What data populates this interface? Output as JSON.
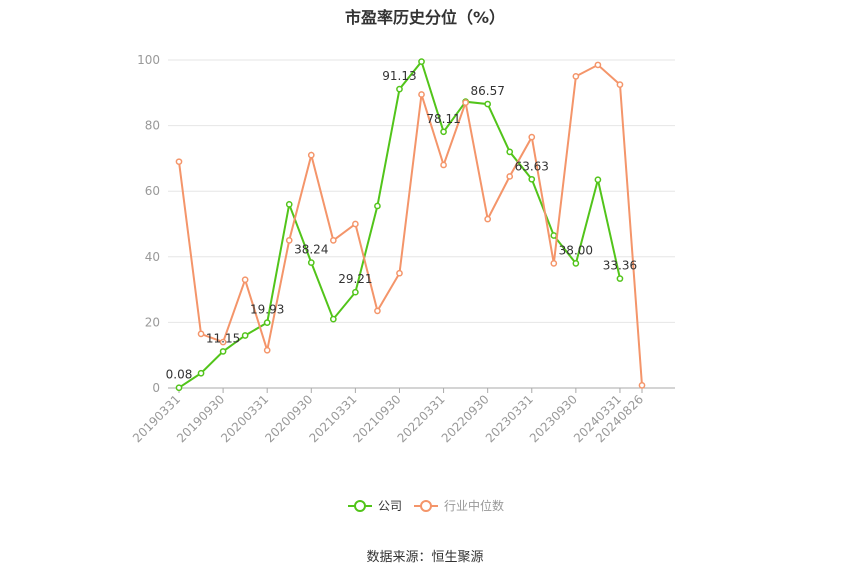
{
  "chart_data": {
    "type": "line",
    "title": "市盈率历史分位（%）",
    "ylim": [
      0,
      100
    ],
    "y_ticks": [
      0,
      20,
      40,
      60,
      80,
      100
    ],
    "x_tick_labels": [
      "20190331",
      "20190930",
      "20200331",
      "20200930",
      "20210331",
      "20210930",
      "20220331",
      "20220930",
      "20230331",
      "20230930",
      "20240331",
      "20240826"
    ],
    "categories": [
      "20190331",
      "20190630",
      "20190930",
      "20191231",
      "20200331",
      "20200630",
      "20200930",
      "20201231",
      "20210331",
      "20210630",
      "20210930",
      "20211231",
      "20220331",
      "20220630",
      "20220930",
      "20221231",
      "20230331",
      "20230630",
      "20230930",
      "20231231",
      "20240331",
      "20240826"
    ],
    "series": [
      {
        "name": "公司",
        "color": "#52c41a",
        "values": [
          0.08,
          4.5,
          11.15,
          16.0,
          19.93,
          56.0,
          38.24,
          21.0,
          29.21,
          55.5,
          91.13,
          99.5,
          78.11,
          87.3,
          86.57,
          72.0,
          63.63,
          46.5,
          38.0,
          63.5,
          33.36,
          null
        ]
      },
      {
        "name": "行业中位数",
        "color": "#f4956a",
        "values": [
          69.0,
          16.5,
          14.0,
          33.0,
          11.5,
          45.0,
          71.0,
          45.0,
          50.0,
          23.5,
          35.0,
          89.5,
          68.0,
          87.0,
          51.5,
          64.5,
          76.5,
          38.0,
          95.0,
          98.5,
          92.5,
          0.8
        ]
      }
    ],
    "data_labels": [
      {
        "series": 0,
        "index": 0,
        "text": "0.08"
      },
      {
        "series": 0,
        "index": 2,
        "text": "11.15"
      },
      {
        "series": 0,
        "index": 4,
        "text": "19.93"
      },
      {
        "series": 0,
        "index": 6,
        "text": "38.24"
      },
      {
        "series": 0,
        "index": 8,
        "text": "29.21"
      },
      {
        "series": 0,
        "index": 10,
        "text": "91.13"
      },
      {
        "series": 0,
        "index": 12,
        "text": "78.11"
      },
      {
        "series": 0,
        "index": 14,
        "text": "86.57"
      },
      {
        "series": 0,
        "index": 16,
        "text": "63.63"
      },
      {
        "series": 0,
        "index": 18,
        "text": "38.00"
      },
      {
        "series": 0,
        "index": 20,
        "text": "33.36"
      }
    ],
    "grid": true,
    "legend_position": "bottom"
  },
  "source_text": "数据来源：恒生聚源"
}
